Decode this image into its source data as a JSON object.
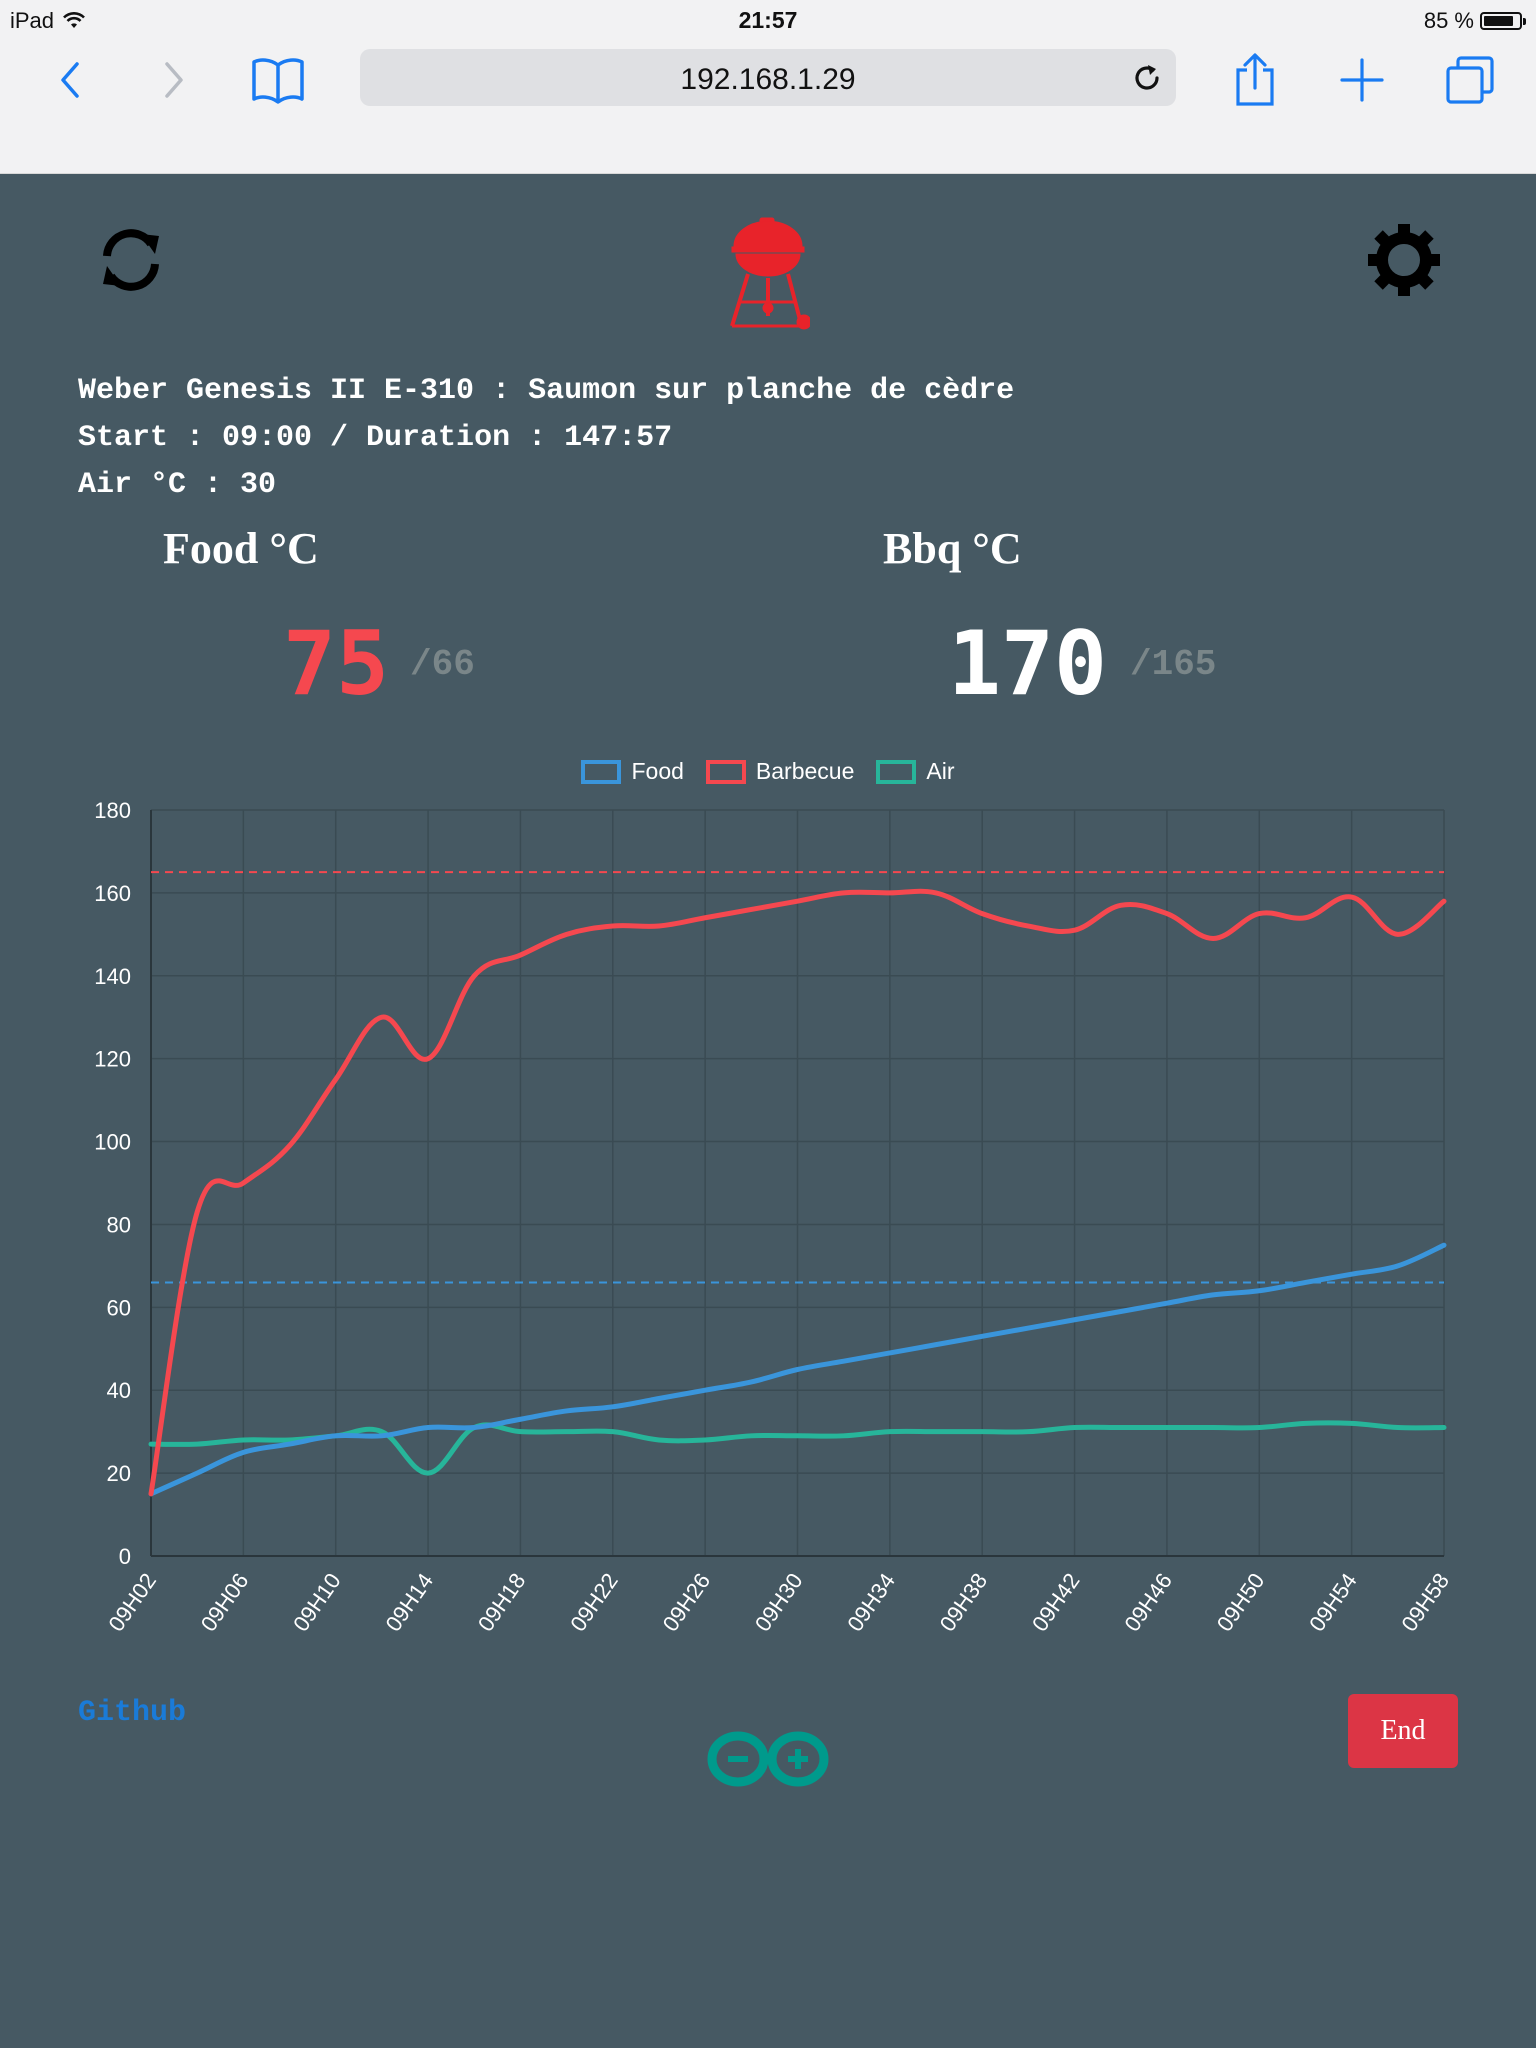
{
  "status_bar": {
    "device": "iPad",
    "time": "21:57",
    "battery": "85 %",
    "battery_level": 0.85
  },
  "browser": {
    "url": "192.168.1.29"
  },
  "session": {
    "title_line": "Weber Genesis II E-310 : Saumon sur planche de cèdre",
    "start_line": "Start : 09:00 / Duration : 147:57",
    "air_line": "Air °C : 30"
  },
  "food": {
    "label": "Food °C",
    "value": "75",
    "target": "/66",
    "color": "#f5484f"
  },
  "bbq": {
    "label": "Bbq °C",
    "value": "170",
    "target": "/165",
    "color": "#ffffff"
  },
  "footer": {
    "github_label": "Github",
    "end_label": "End"
  },
  "colors": {
    "food": "#3a95db",
    "barbecue": "#f5484f",
    "air": "#27b59a",
    "brand_red": "#e8232a",
    "arduino": "#009a8c"
  },
  "chart_data": {
    "type": "line",
    "x": [
      "09H02",
      "09H04",
      "09H06",
      "09H08",
      "09H10",
      "09H12",
      "09H14",
      "09H16",
      "09H18",
      "09H20",
      "09H22",
      "09H24",
      "09H26",
      "09H28",
      "09H30",
      "09H32",
      "09H34",
      "09H36",
      "09H38",
      "09H40",
      "09H42",
      "09H44",
      "09H46",
      "09H48",
      "09H50",
      "09H52",
      "09H54",
      "09H56",
      "09H58"
    ],
    "xtick_labels": [
      "09H02",
      "09H06",
      "09H10",
      "09H14",
      "09H18",
      "09H22",
      "09H26",
      "09H30",
      "09H34",
      "09H38",
      "09H42",
      "09H46",
      "09H50",
      "09H54",
      "09H58"
    ],
    "ylim": [
      0,
      180
    ],
    "yticks": [
      0,
      20,
      40,
      60,
      80,
      100,
      120,
      140,
      160,
      180
    ],
    "grid": true,
    "legend_position": "top",
    "series": [
      {
        "name": "Food",
        "color": "#3a95db",
        "values": [
          15,
          20,
          25,
          27,
          29,
          29,
          31,
          31,
          33,
          35,
          36,
          38,
          40,
          42,
          45,
          47,
          49,
          51,
          53,
          55,
          57,
          59,
          61,
          63,
          64,
          66,
          68,
          70,
          75
        ]
      },
      {
        "name": "Barbecue",
        "color": "#f5484f",
        "values": [
          15,
          83,
          90,
          99,
          115,
          130,
          120,
          140,
          145,
          150,
          152,
          152,
          154,
          156,
          158,
          160,
          160,
          160,
          155,
          152,
          151,
          157,
          155,
          149,
          155,
          154,
          159,
          150,
          158
        ]
      },
      {
        "name": "Air",
        "color": "#27b59a",
        "values": [
          27,
          27,
          28,
          28,
          29,
          30,
          20,
          31,
          30,
          30,
          30,
          28,
          28,
          29,
          29,
          29,
          30,
          30,
          30,
          30,
          31,
          31,
          31,
          31,
          31,
          32,
          32,
          31,
          31
        ]
      }
    ],
    "reference_lines": [
      {
        "value": 165,
        "color": "#f5484f",
        "style": "dashed"
      },
      {
        "value": 66,
        "color": "#3a95db",
        "style": "dashed"
      }
    ]
  }
}
